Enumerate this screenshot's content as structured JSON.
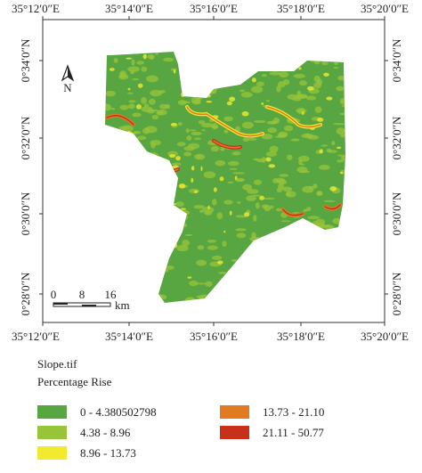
{
  "map": {
    "grid_labels": {
      "top": [
        "35°12′0″E",
        "35°14′0″E",
        "35°16′0″E",
        "35°18′0″E",
        "35°20′0″E"
      ],
      "bottom": [
        "35°12′0″E",
        "35°14′0″E",
        "35°16′0″E",
        "35°18′0″E",
        "35°20′0″E"
      ],
      "left": [
        "0°34′0″N",
        "0°32′0″N",
        "0°30′0″N",
        "0°28′0″N"
      ],
      "right": [
        "0°34′0″N",
        "0°32′0″N",
        "0°30′0″N",
        "0°28′0″N"
      ]
    },
    "north_label": "N",
    "scale_bar": {
      "labels": [
        "0",
        "8",
        "16"
      ],
      "unit": "km"
    }
  },
  "legend": {
    "title": "Slope.tif",
    "subtitle": "Percentage Rise",
    "classes": [
      {
        "label": "0 - 4.380502798",
        "color": "#58a641"
      },
      {
        "label": "4.38 - 8.96",
        "color": "#98c43a"
      },
      {
        "label": "8.96 - 13.73",
        "color": "#f2ea2e"
      },
      {
        "label": "13.73 - 21.10",
        "color": "#e07b22"
      },
      {
        "label": "21.11 - 50.77",
        "color": "#c9301c"
      }
    ]
  }
}
